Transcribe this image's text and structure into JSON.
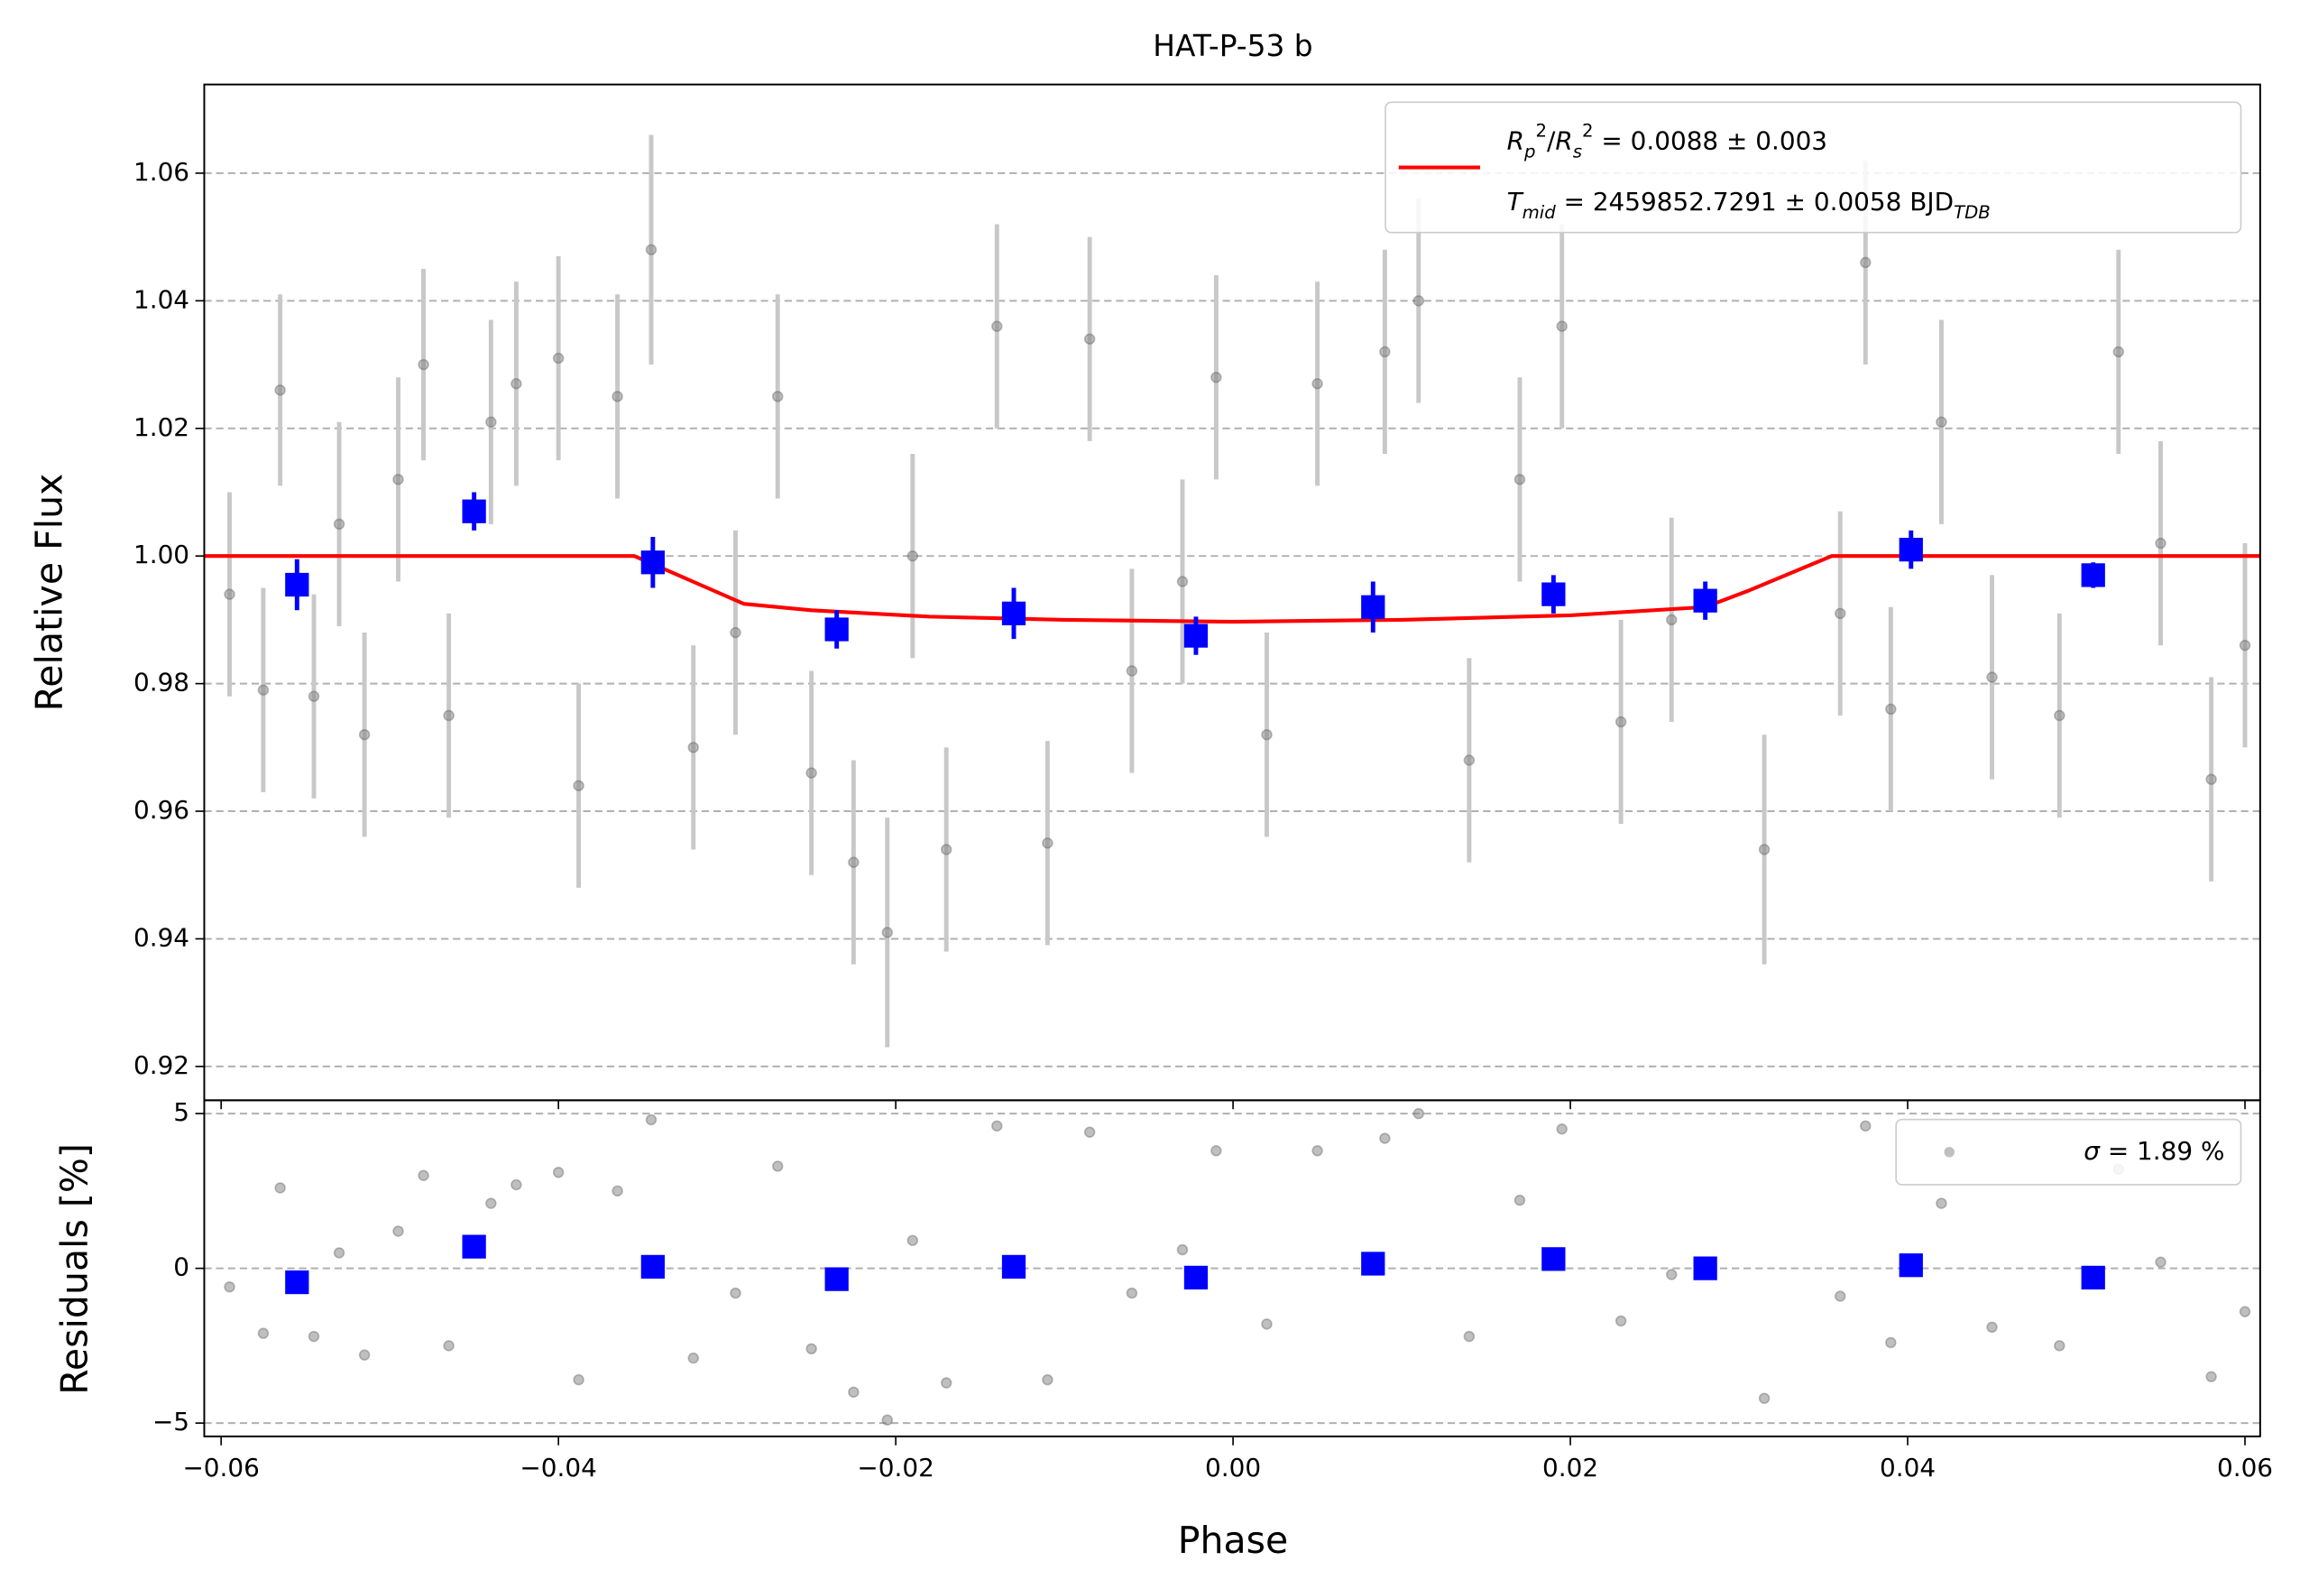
{
  "chart_data": [
    {
      "type": "scatter",
      "title": "HAT-P-53 b",
      "ylabel": "Relative Flux",
      "xlim": [
        -0.061,
        0.0609
      ],
      "ylim": [
        0.9147,
        1.0739
      ],
      "xticks": [
        -0.06,
        -0.04,
        -0.02,
        0,
        0.02,
        0.04,
        0.06
      ],
      "yticks": [
        0.92,
        0.94,
        0.96,
        0.98,
        {
          "value": 1.0,
          "label": "1.00"
        },
        1.02,
        1.04,
        1.06
      ],
      "grid": true,
      "points": {
        "color": "#808080",
        "x": [
          -0.0595,
          -0.0575,
          -0.0565,
          -0.0545,
          -0.053,
          -0.0515,
          -0.0495,
          -0.048,
          -0.0465,
          -0.044,
          -0.0425,
          -0.04,
          -0.0388,
          -0.0365,
          -0.0345,
          -0.032,
          -0.0295,
          -0.027,
          -0.025,
          -0.0225,
          -0.0205,
          -0.019,
          -0.017,
          -0.014,
          -0.011,
          -0.0085,
          -0.006,
          -0.003,
          -0.001,
          0.002,
          0.005,
          0.009,
          0.011,
          0.014,
          0.017,
          0.0195,
          0.023,
          0.026,
          0.0315,
          0.036,
          0.0375,
          0.039,
          0.042,
          0.045,
          0.049,
          0.0525,
          0.055,
          0.058,
          0.06
        ],
        "values": [
          0.994,
          0.979,
          1.026,
          0.978,
          1.005,
          0.972,
          1.012,
          1.03,
          0.975,
          1.021,
          1.027,
          1.031,
          0.964,
          1.025,
          1.048,
          0.97,
          0.988,
          1.025,
          0.966,
          0.952,
          0.941,
          1.0,
          0.954,
          1.036,
          0.955,
          1.034,
          0.982,
          0.996,
          1.028,
          0.972,
          1.027,
          1.032,
          1.04,
          0.968,
          1.012,
          1.036,
          0.974,
          0.99,
          0.954,
          0.991,
          1.046,
          0.976,
          1.021,
          0.981,
          0.975,
          1.032,
          1.002,
          0.965,
          0.986
        ],
        "errors": [
          0.016,
          0.016,
          0.015,
          0.016,
          0.016,
          0.016,
          0.016,
          0.015,
          0.016,
          0.016,
          0.016,
          0.016,
          0.016,
          0.016,
          0.018,
          0.016,
          0.016,
          0.016,
          0.016,
          0.016,
          0.018,
          0.016,
          0.016,
          0.016,
          0.016,
          0.016,
          0.016,
          0.016,
          0.016,
          0.016,
          0.016,
          0.016,
          0.016,
          0.016,
          0.016,
          0.016,
          0.016,
          0.016,
          0.018,
          0.016,
          0.016,
          0.016,
          0.016,
          0.016,
          0.016,
          0.016,
          0.016,
          0.016,
          0.016
        ]
      },
      "binned": {
        "color": "#0000ff",
        "x": [
          -0.0555,
          -0.045,
          -0.0344,
          -0.0235,
          -0.013,
          -0.0022,
          0.0083,
          0.019,
          0.028,
          0.0402,
          0.051
        ],
        "values": [
          0.9955,
          1.007,
          0.999,
          0.9885,
          0.991,
          0.9875,
          0.992,
          0.994,
          0.993,
          1.001,
          0.997
        ],
        "errors": [
          0.004,
          0.003,
          0.004,
          0.003,
          0.004,
          0.003,
          0.004,
          0.003,
          0.003,
          0.003,
          0.002
        ]
      },
      "model": {
        "color": "#ff0000",
        "x": [
          -0.061,
          -0.0355,
          -0.029,
          -0.025,
          -0.018,
          -0.01,
          0,
          0.01,
          0.02,
          0.028,
          0.0305,
          0.0355,
          0.0609
        ],
        "values": [
          1.0,
          1.0,
          0.9925,
          0.9915,
          0.9905,
          0.99,
          0.9897,
          0.99,
          0.9907,
          0.992,
          0.9945,
          1.0,
          1.0
        ]
      },
      "legend_lines": [
        [
          [
            "R",
            "i"
          ],
          [
            "p",
            "sub"
          ],
          [
            "2",
            "sup"
          ],
          [
            "/",
            ""
          ],
          [
            "R",
            "i"
          ],
          [
            "s",
            "sub"
          ],
          [
            "2",
            "sup"
          ],
          [
            " = 0.0088 ± 0.003",
            ""
          ]
        ],
        [
          [
            "T",
            "i"
          ],
          [
            "mid",
            "sub"
          ],
          [
            " = 2459852.7291 ± 0.0058 BJD",
            ""
          ],
          [
            "TDB",
            "sub"
          ]
        ]
      ]
    },
    {
      "type": "scatter",
      "xlabel": "Phase",
      "ylabel": "Residuals [%]",
      "xlim": [
        -0.061,
        0.0609
      ],
      "ylim": [
        -5.43,
        5.43
      ],
      "xticks": [
        {
          "value": -0.06,
          "label": "−0.06"
        },
        {
          "value": -0.04,
          "label": "−0.04"
        },
        {
          "value": -0.02,
          "label": "−0.02"
        },
        {
          "value": 0,
          "label": "0.00"
        },
        0.02,
        0.04,
        0.06
      ],
      "yticks": [
        {
          "value": -5,
          "label": "−5"
        },
        0,
        5
      ],
      "grid": true,
      "points": {
        "color": "#808080",
        "x": [
          -0.0595,
          -0.0575,
          -0.0565,
          -0.0545,
          -0.053,
          -0.0515,
          -0.0495,
          -0.048,
          -0.0465,
          -0.044,
          -0.0425,
          -0.04,
          -0.0388,
          -0.0365,
          -0.0345,
          -0.032,
          -0.0295,
          -0.027,
          -0.025,
          -0.0225,
          -0.0205,
          -0.019,
          -0.017,
          -0.014,
          -0.011,
          -0.0085,
          -0.006,
          -0.003,
          -0.001,
          0.002,
          0.005,
          0.009,
          0.011,
          0.014,
          0.017,
          0.0195,
          0.023,
          0.026,
          0.0315,
          0.036,
          0.0375,
          0.039,
          0.042,
          0.045,
          0.049,
          0.0525,
          0.055,
          0.058,
          0.06
        ],
        "values": [
          -0.6,
          -2.1,
          2.6,
          -2.2,
          0.5,
          -2.8,
          1.2,
          3.0,
          -2.5,
          2.1,
          2.7,
          3.1,
          -3.6,
          2.5,
          4.8,
          -2.9,
          -0.8,
          3.3,
          -2.6,
          -4.0,
          -4.9,
          0.9,
          -3.7,
          4.6,
          -3.6,
          4.4,
          -0.8,
          0.6,
          3.8,
          -1.8,
          3.8,
          4.2,
          5.0,
          -2.2,
          2.2,
          4.5,
          -1.7,
          -0.2,
          -4.2,
          -0.9,
          4.6,
          -2.4,
          2.1,
          -1.9,
          -2.5,
          3.2,
          0.2,
          -3.5,
          -1.4
        ]
      },
      "binned": {
        "color": "#0000ff",
        "x": [
          -0.0555,
          -0.045,
          -0.0344,
          -0.0235,
          -0.013,
          -0.0022,
          0.0083,
          0.019,
          0.028,
          0.0402,
          0.051
        ],
        "values": [
          -0.45,
          0.7,
          0.05,
          -0.35,
          0.05,
          -0.3,
          0.15,
          0.3,
          0.0,
          0.1,
          -0.3
        ]
      },
      "legend_lines": [
        [
          [
            "σ",
            "i"
          ],
          [
            " = 1.89 %",
            ""
          ]
        ]
      ]
    }
  ]
}
